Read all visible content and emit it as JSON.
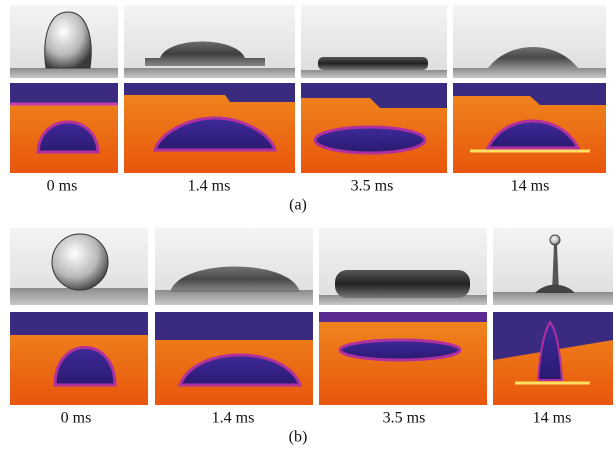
{
  "figure": {
    "rows": [
      {
        "label": "(a)",
        "frames": [
          "0 ms",
          "1.4 ms",
          "3.5 ms",
          "14 ms"
        ]
      },
      {
        "label": "(b)",
        "frames": [
          "0 ms",
          "1.4 ms",
          "3.5 ms",
          "14 ms"
        ]
      }
    ]
  }
}
